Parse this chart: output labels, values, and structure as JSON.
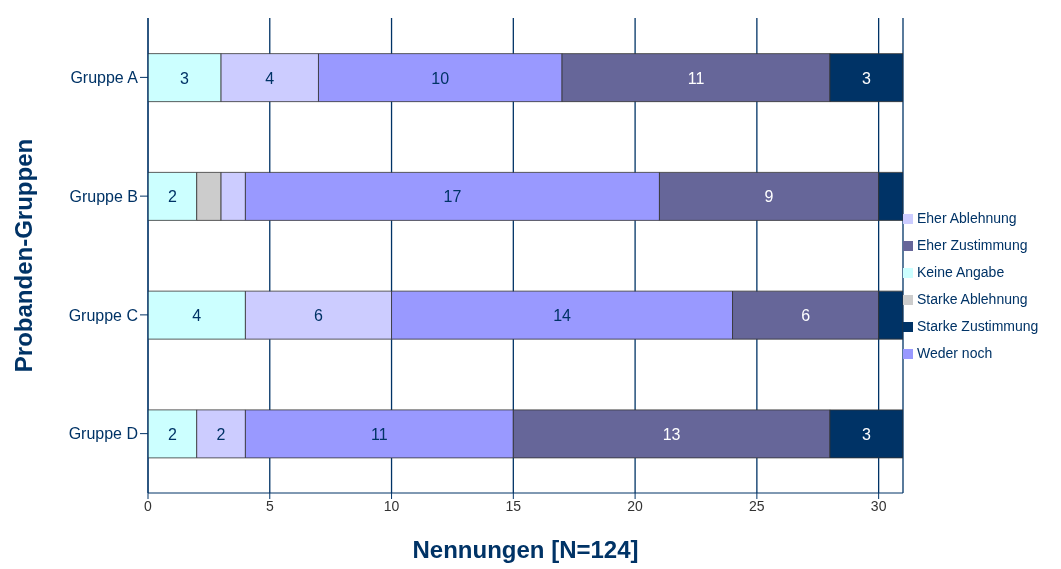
{
  "chart_data": {
    "type": "bar",
    "orientation": "horizontal",
    "stacked": true,
    "xlabel": "Nennungen [N=124]",
    "ylabel": "Probanden-Gruppen",
    "categories": [
      "Gruppe A",
      "Gruppe B",
      "Gruppe C",
      "Gruppe D"
    ],
    "series": [
      {
        "name": "Keine Angabe",
        "color": "#ccffff",
        "values": [
          3,
          2,
          4,
          2
        ],
        "value_labels": [
          "3",
          "2",
          "4",
          "2"
        ]
      },
      {
        "name": "Starke Ablehnung",
        "color": "#cccccc",
        "values": [
          0,
          1,
          0,
          0
        ],
        "value_labels": [
          null,
          null,
          null,
          null
        ]
      },
      {
        "name": "Eher Ablehnung",
        "color": "#ccccff",
        "values": [
          4,
          1,
          6,
          2
        ],
        "value_labels": [
          "4",
          null,
          "6",
          "2"
        ]
      },
      {
        "name": "Weder noch",
        "color": "#9999ff",
        "values": [
          10,
          17,
          14,
          11
        ],
        "value_labels": [
          "10",
          "17",
          "14",
          "11"
        ]
      },
      {
        "name": "Eher Zustimmung",
        "color": "#666699",
        "values": [
          11,
          9,
          6,
          13
        ],
        "value_labels": [
          "11",
          "9",
          "6",
          "13"
        ]
      },
      {
        "name": "Starke Zustimmung",
        "color": "#003366",
        "values": [
          3,
          1,
          1,
          3
        ],
        "value_labels": [
          "3",
          null,
          null,
          "3"
        ]
      }
    ],
    "xlim": [
      0,
      31
    ],
    "xticks": [
      0,
      5,
      10,
      15,
      20,
      25,
      30
    ],
    "grid": "x",
    "legend": "right"
  }
}
